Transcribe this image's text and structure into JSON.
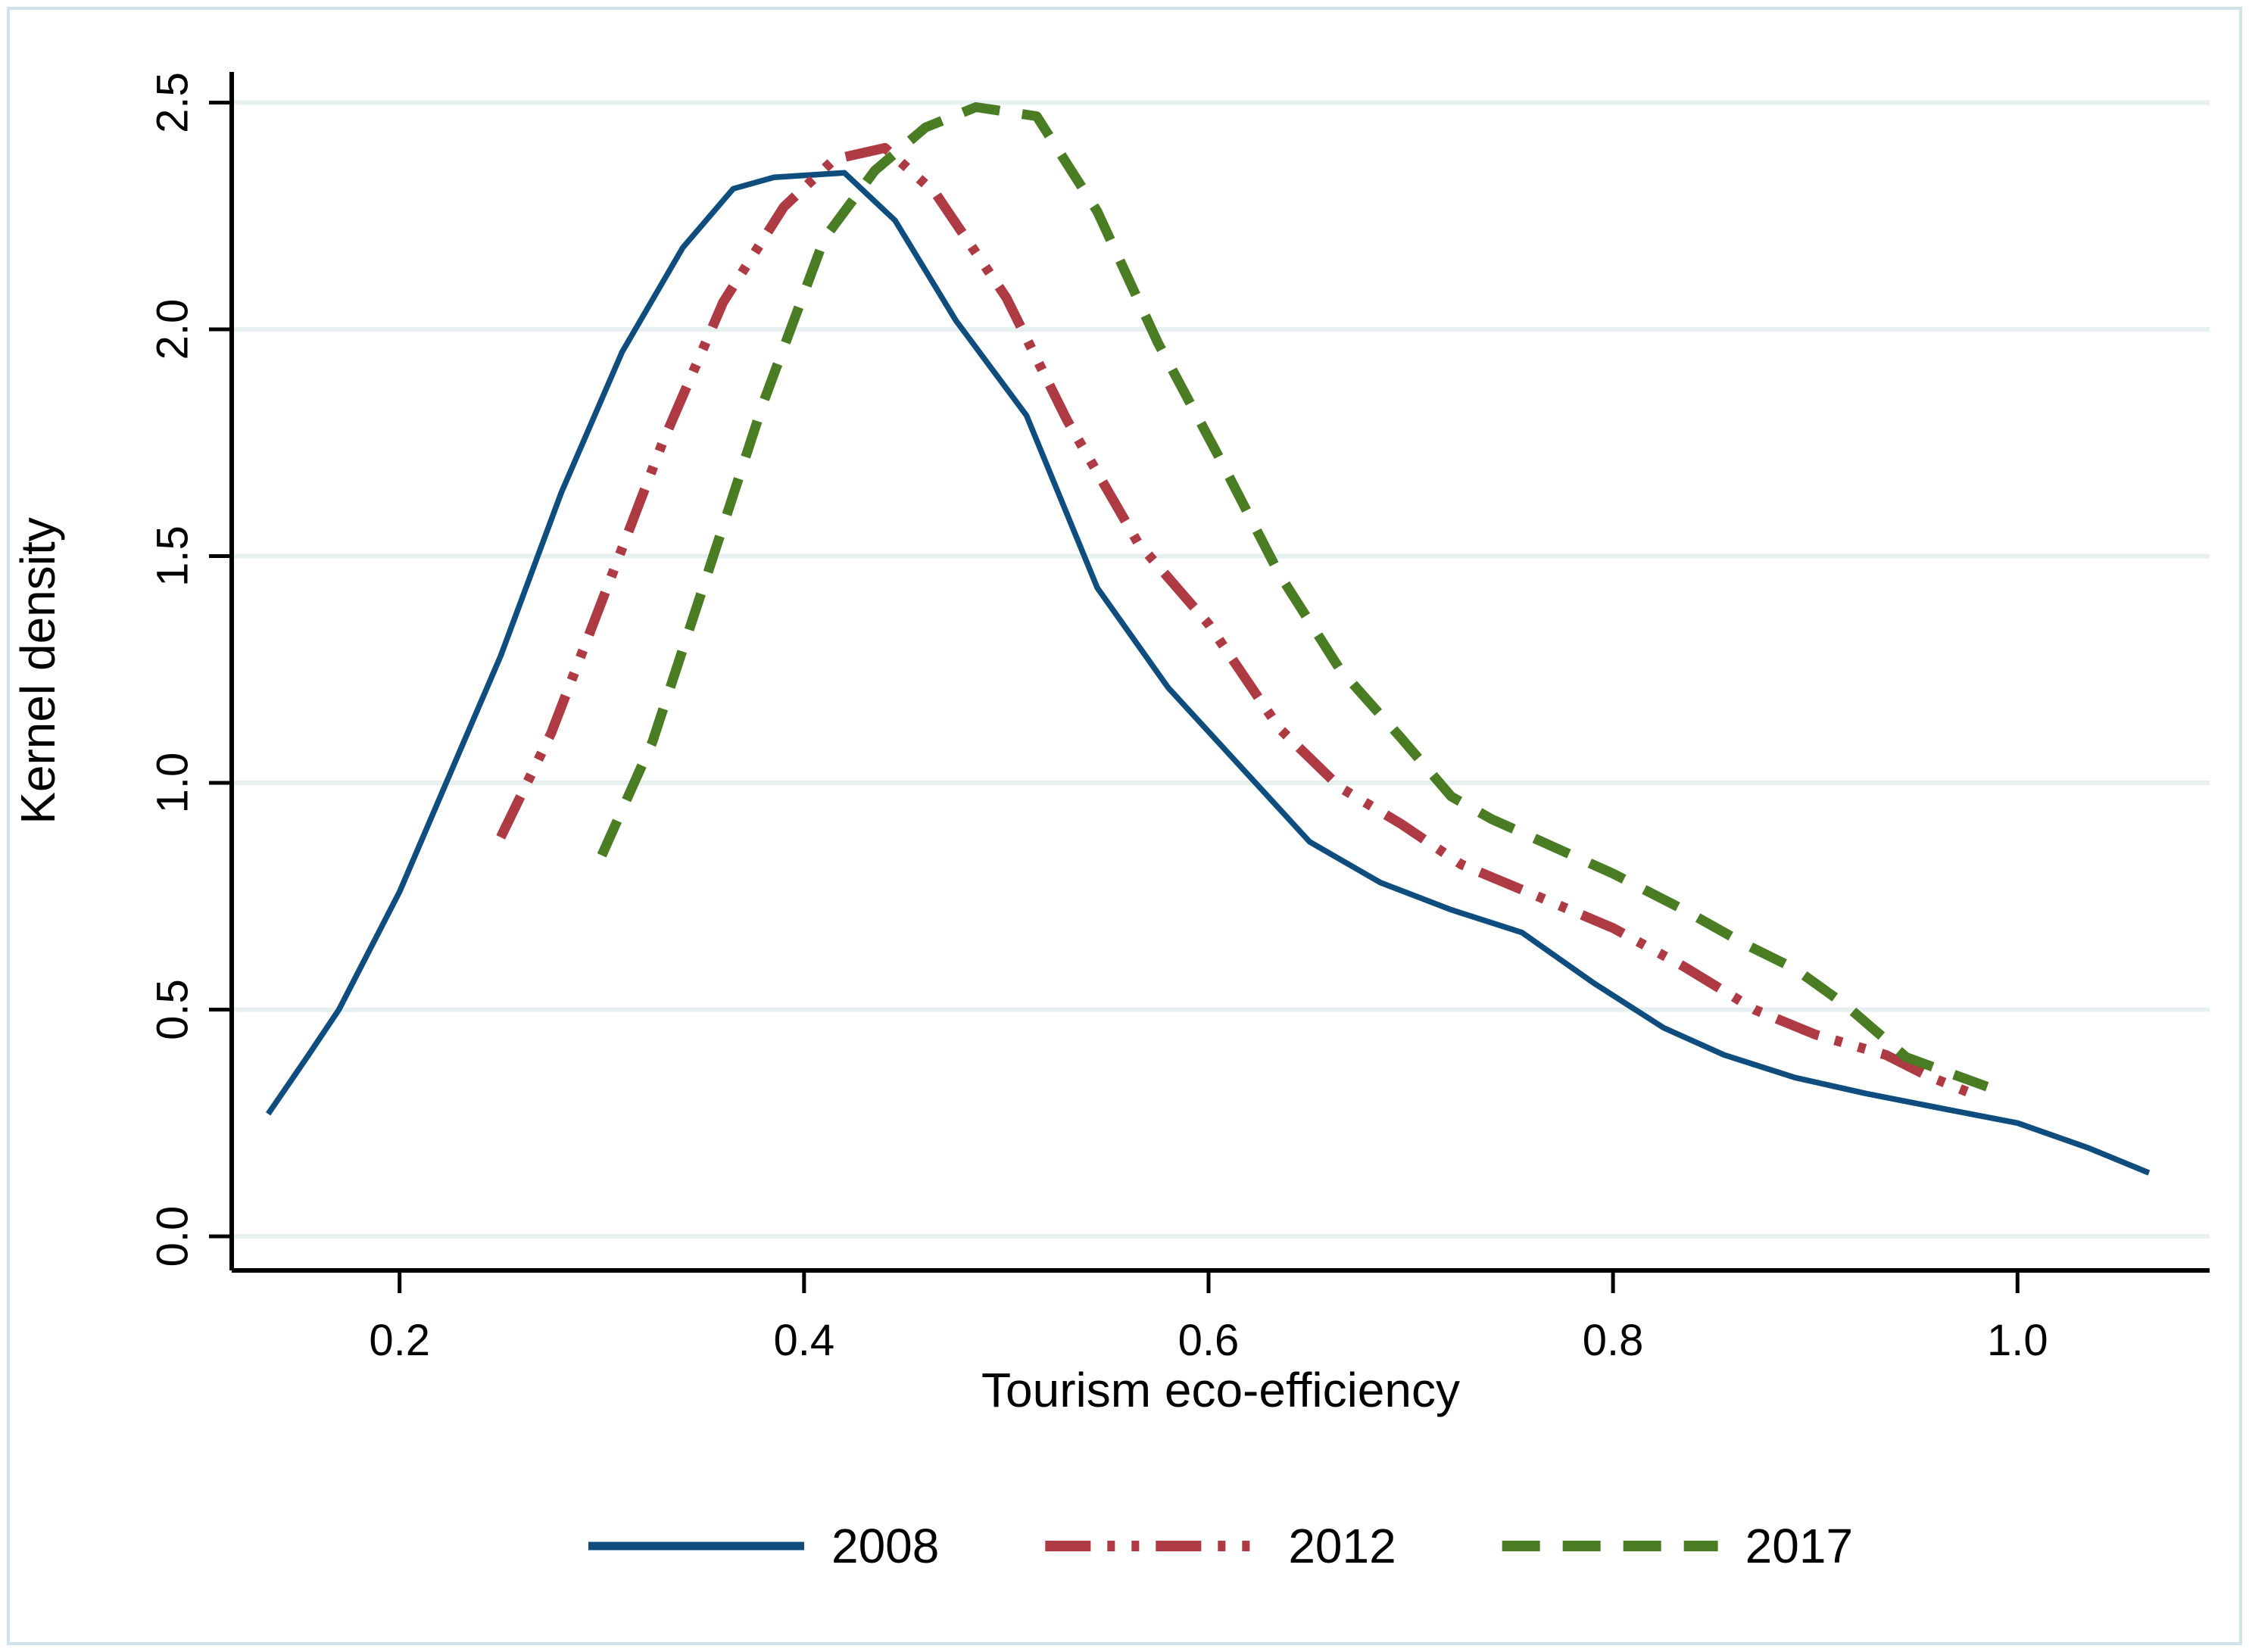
{
  "figure": {
    "background": "#ffffff",
    "border_color": "#d0e3e8",
    "axis_color": "#000000"
  },
  "chart_data": {
    "type": "line",
    "title": "",
    "xlabel": "Tourism eco-efficiency",
    "ylabel": "Kernel density",
    "xlim": [
      0.117,
      1.095
    ],
    "ylim": [
      0.0,
      2.5
    ],
    "x_ticks": [
      0.2,
      0.4,
      0.6,
      0.8,
      1.0
    ],
    "x_tick_labels": [
      "0.2",
      "0.4",
      "0.6",
      "0.8",
      "1.0"
    ],
    "y_ticks": [
      0.0,
      0.5,
      1.0,
      1.5,
      2.0,
      2.5
    ],
    "y_tick_labels": [
      "0.0",
      "0.5",
      "1.0",
      "1.5",
      "2.0",
      "2.5"
    ],
    "grid": "horizontal",
    "gridline_color": "#e6f0f1",
    "legend_position": "bottom",
    "series": [
      {
        "name": "2008",
        "color": "#0e4d7e",
        "style": "solid",
        "width": 7.5,
        "dash": [],
        "points": [
          [
            0.135,
            0.27
          ],
          [
            0.155,
            0.4
          ],
          [
            0.17,
            0.5
          ],
          [
            0.2,
            0.76
          ],
          [
            0.225,
            1.02
          ],
          [
            0.25,
            1.28
          ],
          [
            0.28,
            1.64
          ],
          [
            0.31,
            1.95
          ],
          [
            0.34,
            2.18
          ],
          [
            0.365,
            2.31
          ],
          [
            0.385,
            2.335
          ],
          [
            0.42,
            2.345
          ],
          [
            0.445,
            2.24
          ],
          [
            0.475,
            2.02
          ],
          [
            0.51,
            1.81
          ],
          [
            0.545,
            1.43
          ],
          [
            0.58,
            1.21
          ],
          [
            0.615,
            1.04
          ],
          [
            0.65,
            0.87
          ],
          [
            0.685,
            0.78
          ],
          [
            0.72,
            0.72
          ],
          [
            0.755,
            0.67
          ],
          [
            0.79,
            0.56
          ],
          [
            0.825,
            0.46
          ],
          [
            0.855,
            0.4
          ],
          [
            0.89,
            0.35
          ],
          [
            0.925,
            0.315
          ],
          [
            0.965,
            0.28
          ],
          [
            1.0,
            0.25
          ],
          [
            1.035,
            0.195
          ],
          [
            1.065,
            0.14
          ]
        ]
      },
      {
        "name": "2012",
        "color": "#ae3a44",
        "style": "dash-dot-dot",
        "width": 13,
        "dash": [
          60,
          22,
          10,
          22,
          10,
          22
        ],
        "points": [
          [
            0.25,
            0.88
          ],
          [
            0.275,
            1.11
          ],
          [
            0.3,
            1.4
          ],
          [
            0.33,
            1.75
          ],
          [
            0.36,
            2.06
          ],
          [
            0.39,
            2.27
          ],
          [
            0.415,
            2.375
          ],
          [
            0.44,
            2.4
          ],
          [
            0.465,
            2.3
          ],
          [
            0.5,
            2.07
          ],
          [
            0.53,
            1.8
          ],
          [
            0.565,
            1.53
          ],
          [
            0.6,
            1.35
          ],
          [
            0.635,
            1.12
          ],
          [
            0.665,
            0.99
          ],
          [
            0.695,
            0.91
          ],
          [
            0.725,
            0.82
          ],
          [
            0.76,
            0.755
          ],
          [
            0.8,
            0.68
          ],
          [
            0.835,
            0.595
          ],
          [
            0.87,
            0.5
          ],
          [
            0.9,
            0.445
          ],
          [
            0.935,
            0.4
          ],
          [
            0.955,
            0.355
          ],
          [
            0.98,
            0.31
          ]
        ]
      },
      {
        "name": "2017",
        "color": "#4a7c23",
        "style": "dash",
        "width": 13,
        "dash": [
          50,
          30
        ],
        "points": [
          [
            0.3,
            0.84
          ],
          [
            0.325,
            1.09
          ],
          [
            0.35,
            1.43
          ],
          [
            0.38,
            1.84
          ],
          [
            0.41,
            2.2
          ],
          [
            0.435,
            2.35
          ],
          [
            0.46,
            2.445
          ],
          [
            0.485,
            2.49
          ],
          [
            0.515,
            2.47
          ],
          [
            0.545,
            2.26
          ],
          [
            0.575,
            1.97
          ],
          [
            0.605,
            1.72
          ],
          [
            0.635,
            1.46
          ],
          [
            0.665,
            1.25
          ],
          [
            0.695,
            1.1
          ],
          [
            0.72,
            0.97
          ],
          [
            0.74,
            0.92
          ],
          [
            0.77,
            0.86
          ],
          [
            0.8,
            0.8
          ],
          [
            0.835,
            0.72
          ],
          [
            0.865,
            0.645
          ],
          [
            0.89,
            0.59
          ],
          [
            0.915,
            0.51
          ],
          [
            0.945,
            0.395
          ],
          [
            0.985,
            0.33
          ]
        ]
      }
    ]
  }
}
